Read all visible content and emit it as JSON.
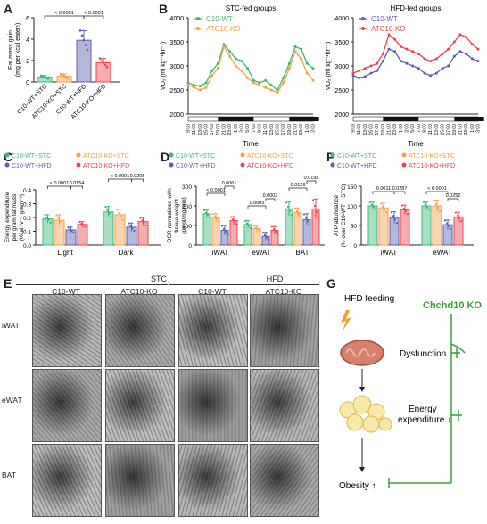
{
  "panel_labels": {
    "a": "A",
    "b": "B",
    "c": "C",
    "d": "D",
    "e": "E",
    "f": "F",
    "g": "G"
  },
  "colors": {
    "c10_stc": "#3cb878",
    "atc_stc": "#f5a04a",
    "c10_hfd": "#5a5fb0",
    "atc_hfd": "#e8464f",
    "green": "#3a9e3a"
  },
  "chart_data": [
    {
      "id": "A",
      "type": "bar",
      "ylabel": "Fat mass gain (mg per kcal eaten)",
      "ylim": [
        0,
        6
      ],
      "yticks": [
        0,
        2,
        4,
        6
      ],
      "categories": [
        "C10-WT+STC",
        "ATC10-KO+STC",
        "C10-WT+HFD",
        "ATC10-KO+HFD"
      ],
      "values": [
        0.45,
        0.55,
        3.9,
        1.8
      ],
      "errors": [
        0.15,
        0.2,
        0.9,
        0.4
      ],
      "pvalues": [
        "< 0.0001",
        "< 0.0001"
      ]
    },
    {
      "id": "B1",
      "type": "line",
      "title": "STC-fed groups",
      "ylabel": "VO₂ (ml kg⁻¹hr⁻¹)",
      "xlabel": "Time",
      "ylim": [
        2000,
        4000
      ],
      "yticks": [
        2000,
        2500,
        3000,
        3500,
        4000
      ],
      "x_ticks": [
        "9:00",
        "11:00",
        "13:00",
        "15:00",
        "17:00",
        "19:00",
        "21:00",
        "23:00",
        "1:00",
        "3:00",
        "5:00",
        "7:00",
        "9:00",
        "11:00",
        "13:00",
        "15:00",
        "17:00",
        "19:00",
        "21:00",
        "23:00",
        "1:00",
        "3:00"
      ],
      "series": [
        {
          "name": "C10-WT",
          "values": [
            2650,
            2600,
            2580,
            2650,
            2900,
            3050,
            3450,
            3300,
            3150,
            3100,
            2950,
            2700,
            2650,
            2700,
            2600,
            2500,
            2750,
            3050,
            3400,
            3350,
            3050,
            2950
          ]
        },
        {
          "name": "ATC10-KO",
          "values": [
            2600,
            2550,
            2500,
            2550,
            2800,
            2950,
            3400,
            3200,
            3000,
            2900,
            2750,
            2650,
            2600,
            2550,
            2500,
            2450,
            2650,
            2950,
            3300,
            3150,
            2850,
            2700
          ]
        }
      ]
    },
    {
      "id": "B2",
      "type": "line",
      "title": "HFD-fed groups",
      "ylabel": "VO₂ (ml kg⁻¹hr⁻¹)",
      "xlabel": "Time",
      "ylim": [
        2000,
        4000
      ],
      "yticks": [
        2000,
        2500,
        3000,
        3500,
        4000
      ],
      "x_ticks": [
        "9:00",
        "11:00",
        "13:00",
        "15:00",
        "17:00",
        "19:00",
        "21:00",
        "23:00",
        "1:00",
        "3:00",
        "5:00",
        "7:00",
        "9:00",
        "11:00",
        "13:00",
        "15:00",
        "17:00",
        "19:00",
        "21:00",
        "23:00",
        "1:00",
        "3:00"
      ],
      "series": [
        {
          "name": "C10-WT",
          "values": [
            2800,
            2750,
            2780,
            2850,
            2900,
            3100,
            3350,
            3300,
            3100,
            3050,
            3000,
            2950,
            2850,
            2800,
            2850,
            2950,
            3000,
            3200,
            3300,
            3250,
            3150,
            3100
          ]
        },
        {
          "name": "ATC10-KO",
          "values": [
            2850,
            2900,
            2950,
            3000,
            3050,
            3250,
            3650,
            3550,
            3400,
            3350,
            3300,
            3250,
            3150,
            3100,
            3150,
            3250,
            3350,
            3500,
            3650,
            3600,
            3450,
            3350
          ]
        }
      ]
    },
    {
      "id": "C",
      "type": "bar",
      "ylabel": "Energy expenditure per gram fat mass (Kcal hr⁻¹ gram⁻¹)",
      "ylim": [
        0,
        0.4
      ],
      "yticks": [
        "0.0",
        "0.1",
        "0.2",
        "0.3",
        "0.4"
      ],
      "categories": [
        "Light",
        "Dark"
      ],
      "legend": [
        "C10-WT+STC",
        "ATC10-KO+STC",
        "C10-WT+HFD",
        "ATC10-KO+HFD"
      ],
      "values": [
        [
          0.19,
          0.18,
          0.11,
          0.15
        ],
        [
          0.24,
          0.22,
          0.13,
          0.17
        ]
      ],
      "errors": [
        [
          0.03,
          0.04,
          0.02,
          0.02
        ],
        [
          0.04,
          0.04,
          0.03,
          0.03
        ]
      ],
      "pvalues": [
        "< 0.0001",
        "0.0154",
        "< 0.0001",
        "0.0205"
      ]
    },
    {
      "id": "D",
      "type": "bar",
      "ylabel": "OCR normalized with tissue weight (pmol/mg/min)",
      "ylim": [
        0,
        300
      ],
      "yticks": [
        0,
        100,
        200,
        300
      ],
      "categories": [
        "iWAT",
        "eWAT",
        "BAT"
      ],
      "legend": [
        "C10-WT+STC",
        "ATC10-KO+STC",
        "C10-WT+HFD",
        "ATC10-KO+HFD"
      ],
      "values": [
        [
          160,
          140,
          75,
          125
        ],
        [
          105,
          85,
          45,
          75
        ],
        [
          185,
          165,
          130,
          185
        ]
      ],
      "errors": [
        [
          20,
          20,
          25,
          20
        ],
        [
          20,
          15,
          20,
          20
        ],
        [
          35,
          25,
          30,
          50
        ]
      ],
      "pvalues": [
        "< 0.0001",
        "0.0061",
        "0.0005",
        "0.0002",
        "0.0126",
        "0.0198"
      ]
    },
    {
      "id": "F",
      "type": "bar",
      "ylabel": "ATP abundance (% over C10-WT + STC)",
      "ylim": [
        0,
        150
      ],
      "yticks": [
        0,
        50,
        100,
        150
      ],
      "categories": [
        "iWAT",
        "eWAT"
      ],
      "legend": [
        "C10-WT+STC",
        "ATC10-KO+STC",
        "C10-WT+HFD",
        "ATC10-KO+HFD"
      ],
      "values": [
        [
          100,
          95,
          70,
          90
        ],
        [
          100,
          100,
          52,
          72
        ]
      ],
      "errors": [
        [
          10,
          12,
          15,
          12
        ],
        [
          10,
          15,
          12,
          12
        ]
      ],
      "pvalues": [
        "0.0011",
        "0.0287",
        "< 0.0001",
        "0.0252"
      ]
    }
  ],
  "panel_e": {
    "group_labels": [
      "STC",
      "HFD"
    ],
    "col_labels": [
      "C10-WT",
      "ATC10-KO",
      "C10-WT",
      "ATC10-KO"
    ],
    "row_labels": [
      "iWAT",
      "eWAT",
      "BAT"
    ]
  },
  "panel_g": {
    "hfd": "HFD feeding",
    "dysfunction": "Dysfunction",
    "energy": "Energy expenditure ↓",
    "obesity": "Obesity ↑",
    "ko": "Chchd10 KO"
  }
}
